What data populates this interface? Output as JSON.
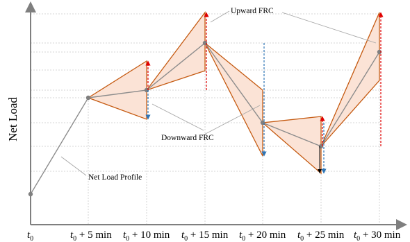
{
  "diagram": {
    "ylabel": "Net Load",
    "annotations": {
      "upward": "Upward FRC",
      "downward": "Downward FRC",
      "profile": "Net Load Profile"
    },
    "xticks": [
      {
        "base": "t",
        "sub": "0",
        "suffix": ""
      },
      {
        "base": "t",
        "sub": "0",
        "suffix": " + 5 min"
      },
      {
        "base": "t",
        "sub": "0",
        "suffix": " + 10 min"
      },
      {
        "base": "t",
        "sub": "0",
        "suffix": " + 15 min"
      },
      {
        "base": "t",
        "sub": "0",
        "suffix": " + 20 min"
      },
      {
        "base": "t",
        "sub": "0",
        "suffix": " + 25 min"
      },
      {
        "base": "t",
        "sub": "0",
        "suffix": " + 30 min"
      }
    ],
    "colors": {
      "axis": "#7f7f7f",
      "grid": "#c9c9c9",
      "profile": "#8c8c8c",
      "band_fill": "#fbe3d6",
      "band_edge": "#c55a11",
      "upward_arrow": "#e00000",
      "downward_arrow": "#2e75b6"
    }
  }
}
